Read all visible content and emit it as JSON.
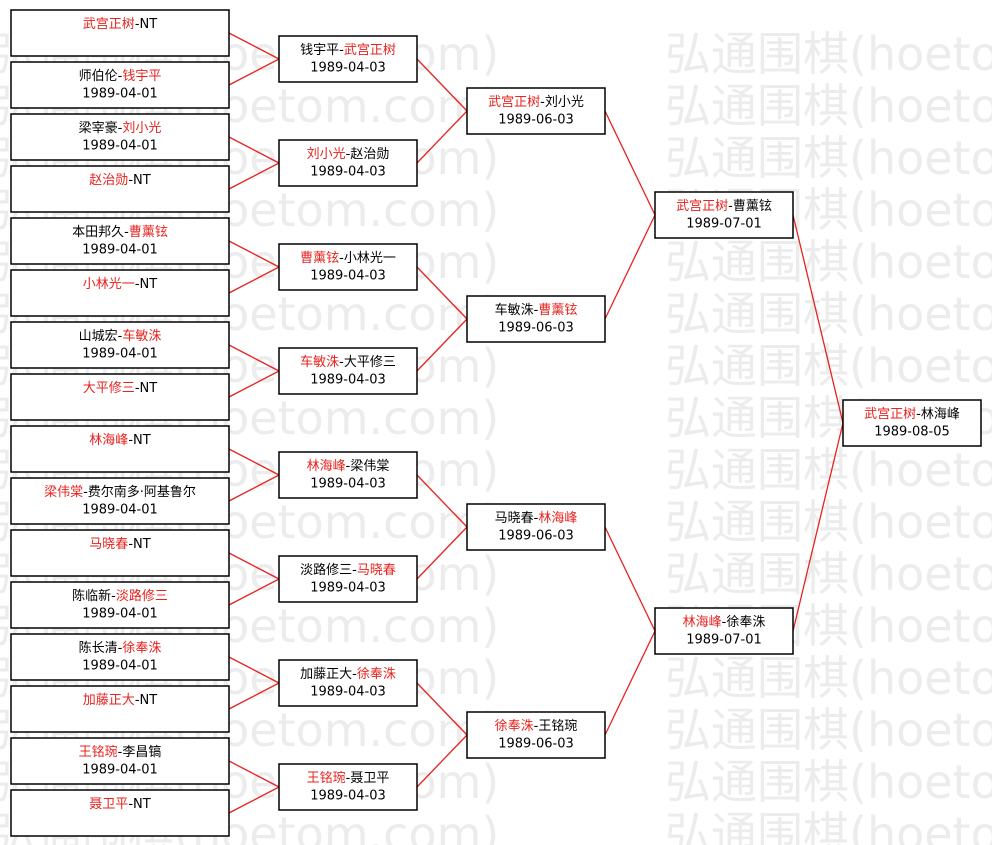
{
  "watermark": "弘通围棋(hoetom.com)",
  "separator": "-",
  "winner_color": "#e8221e",
  "loser_color": "#000000",
  "rounds": [
    {
      "matches": [
        {
          "players": [
            {
              "name": "武宫正树",
              "won": true
            },
            {
              "name": "NT",
              "won": false
            }
          ]
        },
        {
          "players": [
            {
              "name": "师伯伦",
              "won": false
            },
            {
              "name": "钱宇平",
              "won": true
            }
          ],
          "date": "1989-04-01"
        },
        {
          "players": [
            {
              "name": "梁宰豪",
              "won": false
            },
            {
              "name": "刘小光",
              "won": true
            }
          ],
          "date": "1989-04-01"
        },
        {
          "players": [
            {
              "name": "赵治勋",
              "won": true
            },
            {
              "name": "NT",
              "won": false
            }
          ]
        },
        {
          "players": [
            {
              "name": "本田邦久",
              "won": false
            },
            {
              "name": "曹薰铉",
              "won": true
            }
          ],
          "date": "1989-04-01"
        },
        {
          "players": [
            {
              "name": "小林光一",
              "won": true
            },
            {
              "name": "NT",
              "won": false
            }
          ]
        },
        {
          "players": [
            {
              "name": "山城宏",
              "won": false
            },
            {
              "name": "车敏洙",
              "won": true
            }
          ],
          "date": "1989-04-01"
        },
        {
          "players": [
            {
              "name": "大平修三",
              "won": true
            },
            {
              "name": "NT",
              "won": false
            }
          ]
        },
        {
          "players": [
            {
              "name": "林海峰",
              "won": true
            },
            {
              "name": "NT",
              "won": false
            }
          ]
        },
        {
          "players": [
            {
              "name": "梁伟棠",
              "won": true
            },
            {
              "name": "费尔南多·阿基鲁尔",
              "won": false
            }
          ],
          "date": "1989-04-01"
        },
        {
          "players": [
            {
              "name": "马晓春",
              "won": true
            },
            {
              "name": "NT",
              "won": false
            }
          ]
        },
        {
          "players": [
            {
              "name": "陈临新",
              "won": false
            },
            {
              "name": "淡路修三",
              "won": true
            }
          ],
          "date": "1989-04-01"
        },
        {
          "players": [
            {
              "name": "陈长清",
              "won": false
            },
            {
              "name": "徐奉洙",
              "won": true
            }
          ],
          "date": "1989-04-01"
        },
        {
          "players": [
            {
              "name": "加藤正大",
              "won": true
            },
            {
              "name": "NT",
              "won": false
            }
          ]
        },
        {
          "players": [
            {
              "name": "王铭琬",
              "won": true
            },
            {
              "name": "李昌镐",
              "won": false
            }
          ],
          "date": "1989-04-01"
        },
        {
          "players": [
            {
              "name": "聂卫平",
              "won": true
            },
            {
              "name": "NT",
              "won": false
            }
          ]
        }
      ]
    },
    {
      "matches": [
        {
          "players": [
            {
              "name": "钱宇平",
              "won": false
            },
            {
              "name": "武宫正树",
              "won": true
            }
          ],
          "date": "1989-04-03"
        },
        {
          "players": [
            {
              "name": "刘小光",
              "won": true
            },
            {
              "name": "赵治勋",
              "won": false
            }
          ],
          "date": "1989-04-03"
        },
        {
          "players": [
            {
              "name": "曹薰铉",
              "won": true
            },
            {
              "name": "小林光一",
              "won": false
            }
          ],
          "date": "1989-04-03"
        },
        {
          "players": [
            {
              "name": "车敏洙",
              "won": true
            },
            {
              "name": "大平修三",
              "won": false
            }
          ],
          "date": "1989-04-03"
        },
        {
          "players": [
            {
              "name": "林海峰",
              "won": true
            },
            {
              "name": "梁伟棠",
              "won": false
            }
          ],
          "date": "1989-04-03"
        },
        {
          "players": [
            {
              "name": "淡路修三",
              "won": false
            },
            {
              "name": "马晓春",
              "won": true
            }
          ],
          "date": "1989-04-03"
        },
        {
          "players": [
            {
              "name": "加藤正大",
              "won": false
            },
            {
              "name": "徐奉洙",
              "won": true
            }
          ],
          "date": "1989-04-03"
        },
        {
          "players": [
            {
              "name": "王铭琬",
              "won": true
            },
            {
              "name": "聂卫平",
              "won": false
            }
          ],
          "date": "1989-04-03"
        }
      ]
    },
    {
      "matches": [
        {
          "players": [
            {
              "name": "武宫正树",
              "won": true
            },
            {
              "name": "刘小光",
              "won": false
            }
          ],
          "date": "1989-06-03"
        },
        {
          "players": [
            {
              "name": "车敏洙",
              "won": false
            },
            {
              "name": "曹薰铉",
              "won": true
            }
          ],
          "date": "1989-06-03"
        },
        {
          "players": [
            {
              "name": "马晓春",
              "won": false
            },
            {
              "name": "林海峰",
              "won": true
            }
          ],
          "date": "1989-06-03"
        },
        {
          "players": [
            {
              "name": "徐奉洙",
              "won": true
            },
            {
              "name": "王铭琬",
              "won": false
            }
          ],
          "date": "1989-06-03"
        }
      ]
    },
    {
      "matches": [
        {
          "players": [
            {
              "name": "武宫正树",
              "won": true
            },
            {
              "name": "曹薰铉",
              "won": false
            }
          ],
          "date": "1989-07-01"
        },
        {
          "players": [
            {
              "name": "林海峰",
              "won": true
            },
            {
              "name": "徐奉洙",
              "won": false
            }
          ],
          "date": "1989-07-01"
        }
      ]
    },
    {
      "matches": [
        {
          "players": [
            {
              "name": "武宫正树",
              "won": true
            },
            {
              "name": "林海峰",
              "won": false
            }
          ],
          "date": "1989-08-05"
        }
      ]
    }
  ]
}
